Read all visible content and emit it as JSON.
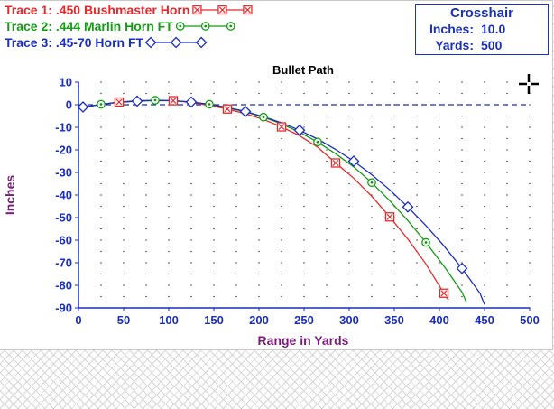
{
  "chart_data": {
    "type": "line",
    "title": "Bullet Path",
    "xlabel": "Range in Yards",
    "ylabel": "Inches",
    "xlim": [
      0,
      500
    ],
    "ylim": [
      -90,
      10
    ],
    "xticks": [
      0,
      50,
      100,
      150,
      200,
      250,
      300,
      350,
      400,
      450,
      500
    ],
    "yticks": [
      10,
      0,
      -10,
      -20,
      -30,
      -40,
      -50,
      -60,
      -70,
      -80,
      -90
    ],
    "grid": "dotted",
    "reference_line_y": 0,
    "legend_position": "top-left",
    "series": [
      {
        "name": ".450 Bushmaster Horn",
        "label_prefix": "Trace 1:",
        "color": "#e8282a",
        "marker": "boxed-x",
        "x": [
          0,
          25,
          45,
          65,
          85,
          105,
          125,
          145,
          165,
          185,
          205,
          225,
          245,
          265,
          285,
          305,
          325,
          345,
          365,
          385,
          405,
          410
        ],
        "y": [
          -1.5,
          0.2,
          1.2,
          1.8,
          2.0,
          1.8,
          1.0,
          -0.3,
          -1.9,
          -4.0,
          -6.5,
          -9.8,
          -13.7,
          -18.8,
          -25.8,
          -32.5,
          -40.5,
          -49.7,
          -59.5,
          -70.5,
          -83.5,
          -86.5
        ],
        "markers_x": [
          45,
          105,
          165,
          225,
          285,
          345,
          405
        ],
        "markers_y": [
          1.2,
          1.8,
          -1.9,
          -9.8,
          -25.8,
          -49.7,
          -83.5
        ]
      },
      {
        "name": ".444 Marlin Horn FT",
        "label_prefix": "Trace 2:",
        "color": "#159b15",
        "marker": "circle-dot",
        "x": [
          0,
          25,
          45,
          65,
          85,
          105,
          125,
          145,
          165,
          185,
          205,
          225,
          245,
          265,
          285,
          305,
          325,
          345,
          365,
          385,
          405,
          425,
          430
        ],
        "y": [
          -1.5,
          0.2,
          1.1,
          1.7,
          2.0,
          1.8,
          1.2,
          0.2,
          -1.3,
          -3.2,
          -5.5,
          -8.5,
          -12.2,
          -16.5,
          -21.7,
          -27.5,
          -34.5,
          -42.5,
          -51.3,
          -61.0,
          -71.5,
          -83.0,
          -87.5
        ],
        "markers_x": [
          25,
          85,
          145,
          205,
          265,
          325,
          385
        ],
        "markers_y": [
          0.2,
          2.0,
          0.2,
          -5.5,
          -16.5,
          -34.5,
          -61.0
        ]
      },
      {
        "name": ".45-70 Horn FT",
        "label_prefix": "Trace 3:",
        "color": "#1a2fbf",
        "marker": "diamond",
        "x": [
          0,
          25,
          45,
          65,
          85,
          105,
          125,
          145,
          165,
          185,
          205,
          225,
          245,
          265,
          285,
          305,
          325,
          345,
          365,
          385,
          405,
          425,
          445,
          450
        ],
        "y": [
          -1.5,
          0.2,
          1.1,
          1.6,
          1.9,
          1.8,
          1.2,
          0.2,
          -1.2,
          -3.0,
          -5.3,
          -8.0,
          -11.3,
          -15.2,
          -19.8,
          -25.0,
          -31.0,
          -37.7,
          -45.3,
          -53.5,
          -62.5,
          -72.5,
          -83.5,
          -88.5
        ],
        "markers_x": [
          5,
          65,
          125,
          185,
          245,
          305,
          365,
          425
        ],
        "markers_y": [
          -1.0,
          1.6,
          1.2,
          -3.0,
          -11.3,
          -25.0,
          -45.3,
          -72.5
        ]
      }
    ]
  },
  "crosshair": {
    "title": "Crosshair",
    "inches_label": "Inches:",
    "inches_value": "10.0",
    "yards_label": "Yards:",
    "yards_value": "500"
  }
}
